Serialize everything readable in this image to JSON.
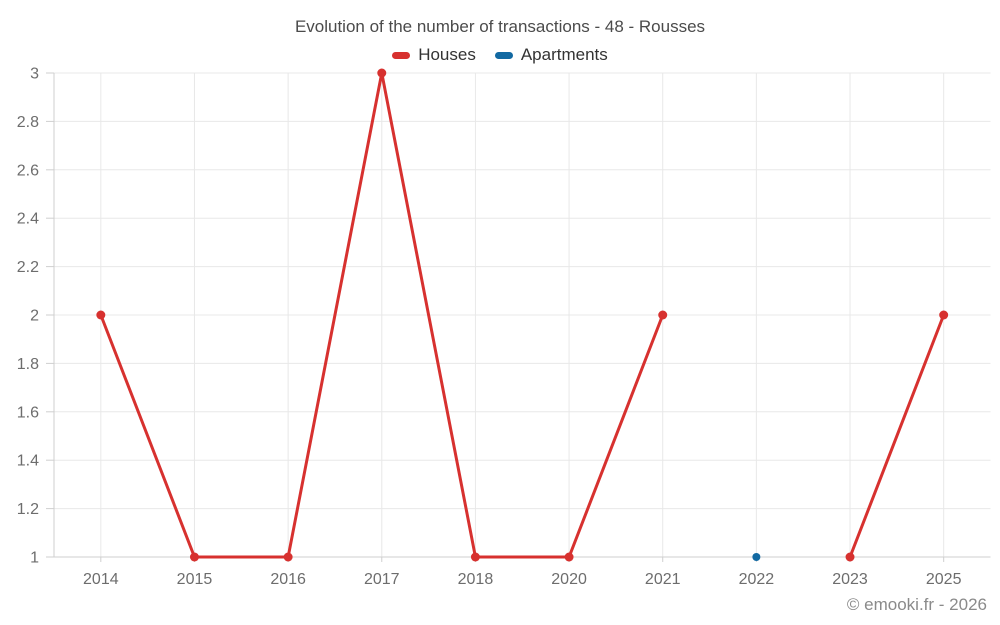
{
  "chart_data": {
    "type": "line",
    "title": "Evolution of the number of transactions - 48 - Rousses",
    "xlabel": "",
    "ylabel": "",
    "categories": [
      "2014",
      "2015",
      "2016",
      "2017",
      "2018",
      "2020",
      "2021",
      "2022",
      "2023",
      "2025"
    ],
    "series": [
      {
        "name": "Houses",
        "color": "#d7312f",
        "marker_radius": 4.5,
        "values": [
          2,
          1,
          1,
          3,
          1,
          1,
          2,
          null,
          1,
          2
        ]
      },
      {
        "name": "Apartments",
        "color": "#1269a2",
        "marker_radius": 4,
        "values": [
          null,
          null,
          null,
          null,
          null,
          null,
          null,
          1,
          null,
          null
        ]
      }
    ],
    "ylim": [
      1,
      3
    ],
    "ytick_labels": [
      "1",
      "1.2",
      "1.4",
      "1.6",
      "1.8",
      "2",
      "2.2",
      "2.4",
      "2.6",
      "2.8",
      "3"
    ],
    "grid": true,
    "legend_position": "top"
  },
  "footer": {
    "text": "© emooki.fr - 2026"
  }
}
